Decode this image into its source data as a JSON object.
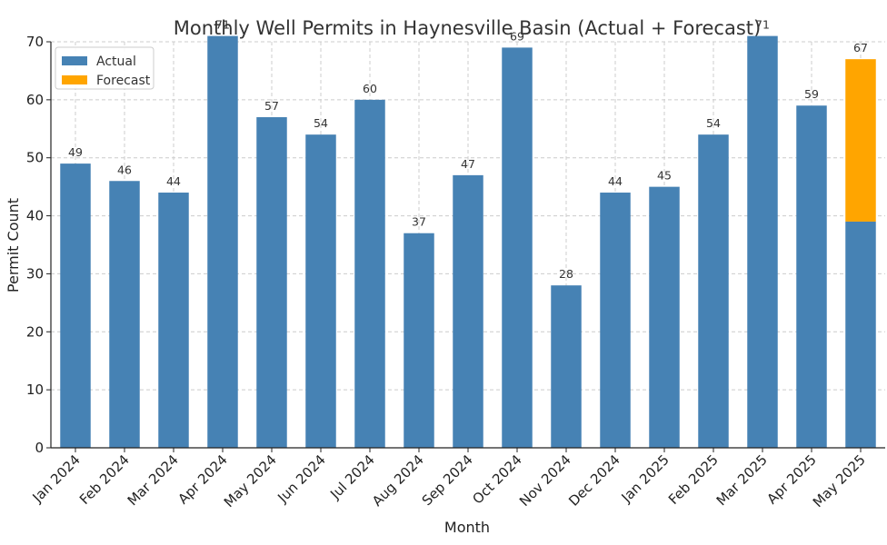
{
  "chart_data": {
    "type": "bar",
    "title": "Monthly Well Permits in Haynesville Basin (Actual + Forecast)",
    "xlabel": "Month",
    "ylabel": "Permit Count",
    "ylim": [
      0,
      70
    ],
    "yticks": [
      0,
      10,
      20,
      30,
      40,
      50,
      60,
      70
    ],
    "grid": true,
    "legend_position": "top-left",
    "categories": [
      "Jan 2024",
      "Feb 2024",
      "Mar 2024",
      "Apr 2024",
      "May 2024",
      "Jun 2024",
      "Jul 2024",
      "Aug 2024",
      "Sep 2024",
      "Oct 2024",
      "Nov 2024",
      "Dec 2024",
      "Jan 2025",
      "Feb 2025",
      "Mar 2025",
      "Apr 2025",
      "May 2025"
    ],
    "series": [
      {
        "name": "Actual",
        "color": "#4682b4",
        "values": [
          49,
          46,
          44,
          71,
          57,
          54,
          60,
          37,
          47,
          69,
          28,
          44,
          45,
          54,
          71,
          59,
          39
        ]
      },
      {
        "name": "Forecast",
        "color": "#ffa500",
        "values": [
          0,
          0,
          0,
          0,
          0,
          0,
          0,
          0,
          0,
          0,
          0,
          0,
          0,
          0,
          0,
          0,
          28
        ]
      }
    ],
    "stacked": true,
    "data_labels": [
      "49",
      "46",
      "44",
      "71",
      "57",
      "54",
      "60",
      "37",
      "47",
      "69",
      "28",
      "44",
      "45",
      "54",
      "71",
      "59",
      "67"
    ]
  }
}
